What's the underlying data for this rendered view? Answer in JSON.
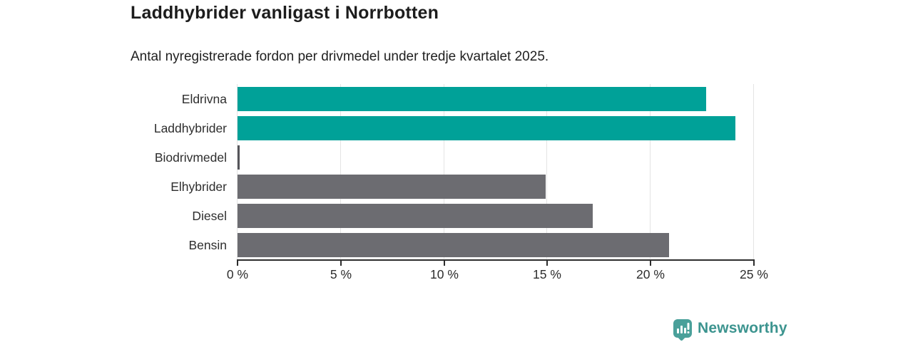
{
  "header": {
    "title": "Laddhybrider vanligast i Norrbotten",
    "subtitle": "Antal nyregistrerade fordon per drivmedel under tredje kvartalet 2025."
  },
  "chart_data": {
    "type": "bar",
    "orientation": "horizontal",
    "title": "Laddhybrider vanligast i Norrbotten",
    "subtitle": "Antal nyregistrerade fordon per drivmedel under tredje kvartalet 2025.",
    "categories": [
      "Eldrivna",
      "Laddhybrider",
      "Biodrivmedel",
      "Elhybrider",
      "Diesel",
      "Bensin"
    ],
    "values": [
      22.7,
      24.1,
      0.1,
      14.9,
      17.2,
      20.9
    ],
    "unit": "%",
    "xlim": [
      0,
      25
    ],
    "tick_values": [
      0,
      5,
      10,
      15,
      20,
      25
    ],
    "tick_labels": [
      "0 %",
      "5 %",
      "10 %",
      "15 %",
      "20 %",
      "25 %"
    ],
    "bar_colors": [
      "#00a198",
      "#00a198",
      "#55555a",
      "#6c6c71",
      "#6c6c71",
      "#6c6c71"
    ],
    "grid": true,
    "legend": "none"
  },
  "branding": {
    "logo_text": "Newsworthy",
    "logo_icon": "bar-chart-speech-bubble-icon",
    "logo_text_color": "#3c948f",
    "logo_icon_bg": "#4aa09a",
    "logo_glyph_color": "#ffffff"
  },
  "colors": {
    "accent_teal": "#00a198",
    "neutral_gray": "#6c6c71",
    "text": "#1c1c1c",
    "axis": "#2d2d2d",
    "gridline": "#e4e4e4",
    "background": "#ffffff"
  }
}
